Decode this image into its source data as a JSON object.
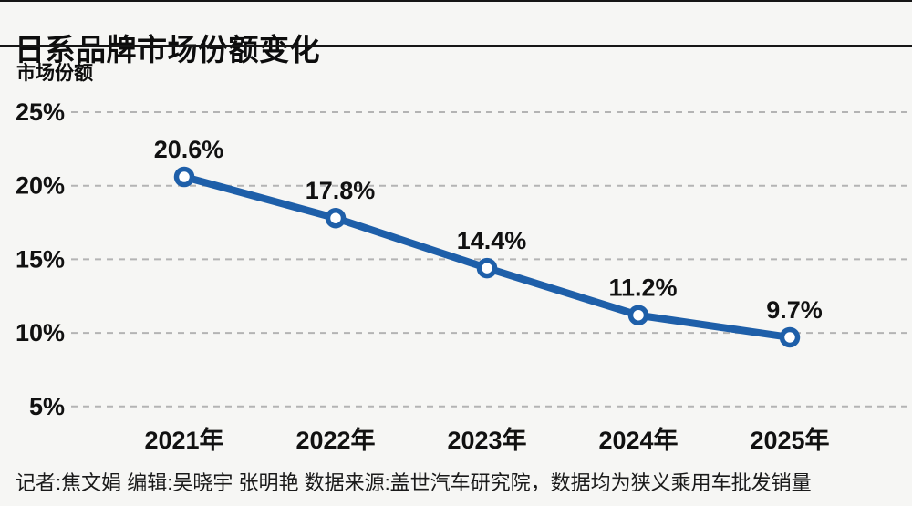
{
  "header": {
    "title": "日系品牌市场份额变化"
  },
  "footer": {
    "credits": "记者:焦文娟  编辑:吴晓宇 张明艳  数据来源:盖世汽车研究院，数据均为狭义乘用车批发销量"
  },
  "chart_data": {
    "type": "line",
    "title": "日系品牌市场份额变化",
    "ylabel": "市场份额",
    "xlabel": "",
    "categories": [
      "2021年",
      "2022年",
      "2023年",
      "2024年",
      "2025年"
    ],
    "values": [
      20.6,
      17.8,
      14.4,
      11.2,
      9.7
    ],
    "point_labels": [
      "20.6%",
      "17.8%",
      "14.4%",
      "11.2%",
      "9.7%"
    ],
    "yticks": [
      {
        "value": 25,
        "label": "25%"
      },
      {
        "value": 20,
        "label": "20%"
      },
      {
        "value": 15,
        "label": "15%"
      },
      {
        "value": 10,
        "label": "10%"
      },
      {
        "value": 5,
        "label": "5%"
      }
    ],
    "ylim": [
      5,
      25
    ],
    "grid": "dashed-horizontal",
    "legend": "none",
    "colors": {
      "line": "#1e5fa9",
      "marker_fill": "#ffffff",
      "marker_stroke": "#1e5fa9",
      "grid": "#b4b4b4",
      "text": "#111111",
      "background": "#f6f6f4",
      "rule": "#161616"
    }
  }
}
